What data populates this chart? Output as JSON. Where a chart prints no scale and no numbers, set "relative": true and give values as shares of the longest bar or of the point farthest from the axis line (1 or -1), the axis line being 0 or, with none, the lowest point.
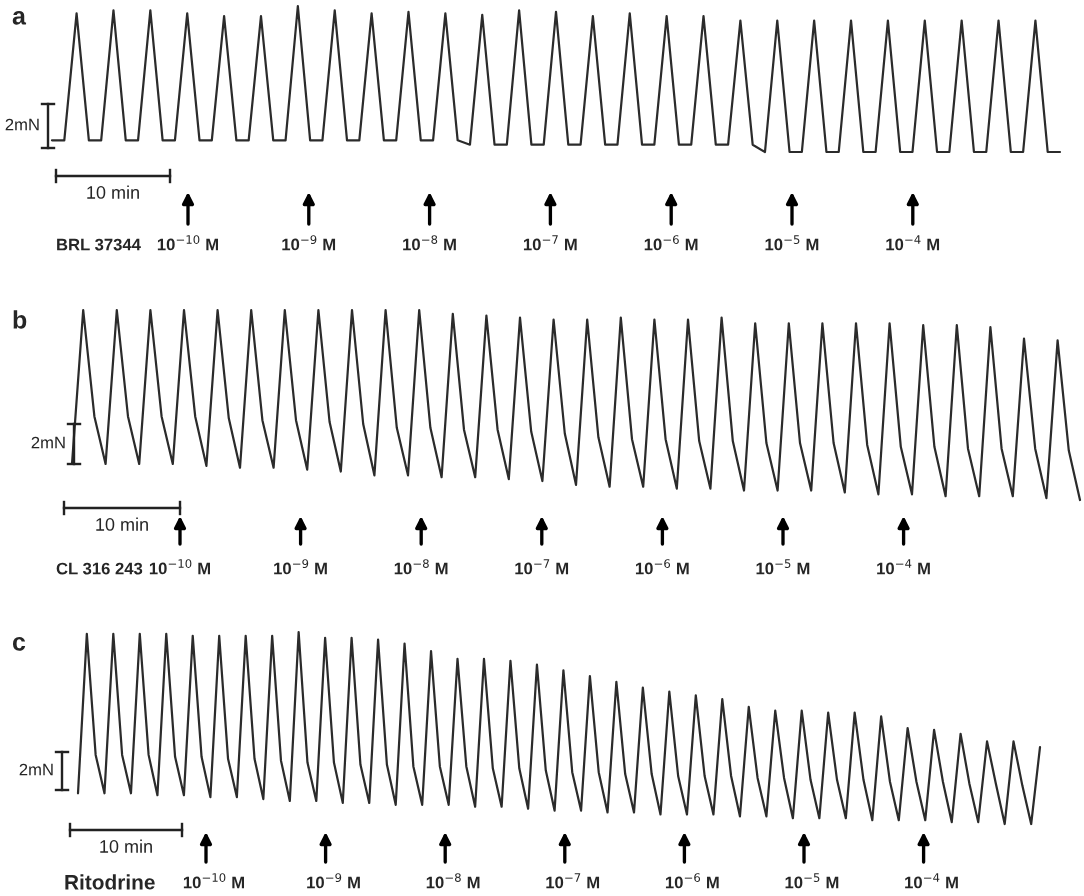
{
  "chart_data": [
    {
      "type": "line",
      "title": "a",
      "relative": true,
      "categories": [
        null,
        null,
        null,
        null,
        null,
        null,
        null,
        null,
        null,
        null,
        null,
        null,
        null,
        null,
        null,
        null,
        null,
        null,
        null,
        null,
        null,
        null,
        null,
        null,
        null,
        null,
        null,
        null,
        null,
        null,
        null,
        null,
        null,
        null,
        null,
        null,
        null,
        null,
        null,
        null,
        null,
        null,
        null,
        null,
        null,
        null,
        null,
        null,
        null,
        null,
        null,
        null,
        null,
        null,
        null,
        null,
        null,
        null,
        null,
        null,
        null,
        null,
        null,
        null,
        null,
        null,
        null,
        null,
        null,
        null,
        null,
        null,
        null,
        null,
        null,
        null,
        null,
        null,
        null,
        null,
        null,
        null,
        null
      ],
      "series": [
        {
          "color": "#2b2b2b",
          "values": [
            0.08,
            0.08,
            0.95,
            0.08,
            0.08,
            0.97,
            0.08,
            0.08,
            0.97,
            0.08,
            0.08,
            0.95,
            0.08,
            0.08,
            0.93,
            0.08,
            0.08,
            0.93,
            0.08,
            0.08,
            1.0,
            0.08,
            0.08,
            0.97,
            0.08,
            0.08,
            0.95,
            0.08,
            0.08,
            0.96,
            0.08,
            0.08,
            0.95,
            0.08,
            0.05,
            0.94,
            0.05,
            0.05,
            0.97,
            0.05,
            0.05,
            0.96,
            0.05,
            0.05,
            0.93,
            0.05,
            0.05,
            0.95,
            0.05,
            0.05,
            0.93,
            0.05,
            0.05,
            0.93,
            0.05,
            0.05,
            0.9,
            0.05,
            0.0,
            0.9,
            0.0,
            0.0,
            0.9,
            0.0,
            0.0,
            0.9,
            0.0,
            0.0,
            0.9,
            0.0,
            0.0,
            0.9,
            0.0,
            0.0,
            0.9,
            0.0,
            0.0,
            0.9,
            0.0,
            0.0,
            0.9,
            0.0,
            0.0
          ]
        }
      ],
      "annotations": [
        "BRL 37344",
        "10 min",
        "2mN",
        "10$^{−10}$ M",
        "10$^{−9}$ M",
        "10$^{−8}$ M",
        "10$^{−7}$ M",
        "10$^{−6}$ M",
        "10$^{−5}$ M",
        "10$^{−4}$ M"
      ]
    },
    {
      "type": "line",
      "title": "b",
      "relative": true,
      "categories": [
        null,
        null,
        null,
        null,
        null,
        null,
        null,
        null,
        null,
        null,
        null,
        null,
        null,
        null,
        null,
        null,
        null,
        null,
        null,
        null,
        null,
        null,
        null,
        null,
        null,
        null,
        null,
        null,
        null,
        null,
        null,
        null,
        null,
        null,
        null,
        null,
        null,
        null,
        null,
        null,
        null,
        null,
        null,
        null,
        null,
        null,
        null,
        null,
        null,
        null,
        null,
        null,
        null,
        null,
        null,
        null,
        null,
        null,
        null,
        null,
        null,
        null,
        null,
        null,
        null,
        null,
        null,
        null,
        null,
        null,
        null,
        null,
        null,
        null,
        null,
        null,
        null,
        null,
        null,
        null,
        null,
        null,
        null,
        null,
        null,
        null,
        null,
        null,
        null,
        null,
        null
      ],
      "series": [
        {
          "color": "#2b2b2b",
          "values": [
            0.19,
            1.0,
            0.44,
            0.19,
            1.0,
            0.44,
            0.19,
            1.0,
            0.44,
            0.19,
            1.0,
            0.44,
            0.18,
            1.0,
            0.43,
            0.17,
            1.0,
            0.42,
            0.17,
            1.0,
            0.42,
            0.16,
            1.0,
            0.41,
            0.15,
            1.0,
            0.4,
            0.13,
            1.0,
            0.38,
            0.13,
            1.0,
            0.38,
            0.12,
            0.98,
            0.37,
            0.12,
            0.97,
            0.37,
            0.11,
            0.96,
            0.36,
            0.1,
            0.95,
            0.35,
            0.08,
            0.95,
            0.33,
            0.07,
            0.96,
            0.32,
            0.07,
            0.95,
            0.32,
            0.06,
            0.95,
            0.31,
            0.06,
            0.96,
            0.31,
            0.05,
            0.93,
            0.3,
            0.05,
            0.93,
            0.3,
            0.05,
            0.93,
            0.3,
            0.04,
            0.93,
            0.29,
            0.03,
            0.93,
            0.28,
            0.03,
            0.92,
            0.28,
            0.02,
            0.92,
            0.27,
            0.02,
            0.91,
            0.27,
            0.02,
            0.85,
            0.27,
            0.01,
            0.84,
            0.26,
            0.0
          ]
        }
      ],
      "annotations": [
        "CL 316 243",
        "10 min",
        "2mN",
        "10$^{−10}$ M",
        "10$^{−9}$ M",
        "10$^{−8}$ M",
        "10$^{−7}$ M",
        "10$^{−6}$ M",
        "10$^{−5}$ M",
        "10$^{−4}$ M"
      ]
    },
    {
      "type": "line",
      "title": "c",
      "relative": true,
      "categories": [
        null,
        null,
        null,
        null,
        null,
        null,
        null,
        null,
        null,
        null,
        null,
        null,
        null,
        null,
        null,
        null,
        null,
        null,
        null,
        null,
        null,
        null,
        null,
        null,
        null,
        null,
        null,
        null,
        null,
        null,
        null,
        null,
        null,
        null,
        null,
        null,
        null,
        null,
        null,
        null,
        null,
        null,
        null,
        null,
        null,
        null,
        null,
        null,
        null,
        null,
        null,
        null,
        null,
        null,
        null,
        null,
        null,
        null,
        null,
        null,
        null,
        null,
        null,
        null,
        null,
        null,
        null,
        null,
        null,
        null,
        null,
        null,
        null,
        null,
        null,
        null,
        null,
        null,
        null,
        null,
        null,
        null,
        null,
        null,
        null,
        null,
        null,
        null,
        null,
        null,
        null,
        null,
        null,
        null,
        null,
        null,
        null,
        null,
        null,
        null,
        null,
        null,
        null,
        null,
        null,
        null,
        null,
        null,
        null,
        null
      ],
      "series": [
        {
          "color": "#2b2b2b",
          "values": [
            0.16,
            0.99,
            0.36,
            0.16,
            0.99,
            0.36,
            0.16,
            0.99,
            0.36,
            0.15,
            0.99,
            0.35,
            0.15,
            0.98,
            0.35,
            0.14,
            0.98,
            0.34,
            0.14,
            0.98,
            0.34,
            0.13,
            0.98,
            0.33,
            0.12,
            1.0,
            0.32,
            0.12,
            0.97,
            0.32,
            0.11,
            0.97,
            0.31,
            0.11,
            0.96,
            0.31,
            0.1,
            0.94,
            0.3,
            0.1,
            0.9,
            0.3,
            0.1,
            0.86,
            0.3,
            0.09,
            0.86,
            0.29,
            0.09,
            0.85,
            0.29,
            0.08,
            0.83,
            0.28,
            0.07,
            0.8,
            0.27,
            0.07,
            0.77,
            0.27,
            0.06,
            0.74,
            0.26,
            0.06,
            0.71,
            0.26,
            0.05,
            0.69,
            0.25,
            0.05,
            0.67,
            0.25,
            0.05,
            0.65,
            0.25,
            0.04,
            0.61,
            0.24,
            0.04,
            0.59,
            0.24,
            0.03,
            0.59,
            0.23,
            0.03,
            0.58,
            0.23,
            0.03,
            0.58,
            0.23,
            0.02,
            0.56,
            0.22,
            0.02,
            0.5,
            0.22,
            0.02,
            0.49,
            0.22,
            0.01,
            0.47,
            0.21,
            0.01,
            0.43,
            0.21,
            0.0,
            0.43,
            0.2,
            0.0,
            0.4
          ]
        }
      ],
      "annotations": [
        "Ritodrine",
        "10 min",
        "2mN",
        "10$^{−10}$ M",
        "10$^{−9}$ M",
        "10$^{−8}$ M",
        "10$^{−7}$ M",
        "10$^{−6}$ M",
        "10$^{−5}$ M",
        "10$^{−4}$ M"
      ]
    }
  ]
}
